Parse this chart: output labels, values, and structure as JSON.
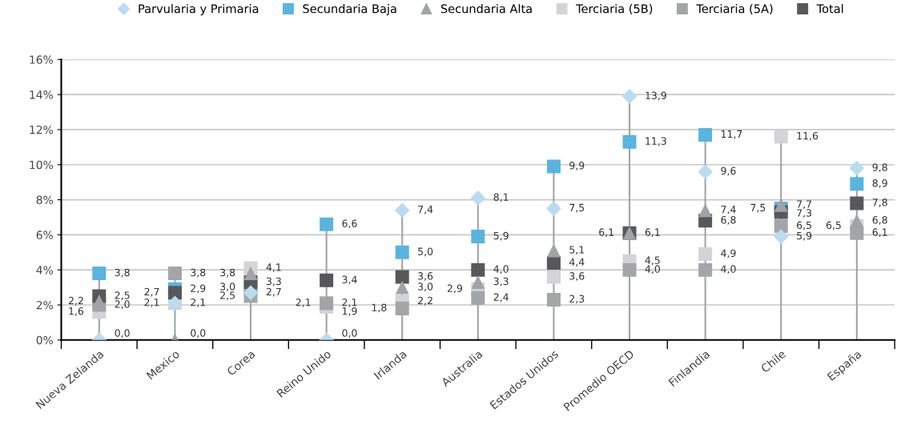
{
  "chart_data": {
    "type": "scatter",
    "categories": [
      "Nueva Zelanda",
      "Mexico",
      "Corea",
      "Reino Unido",
      "Irlanda",
      "Australia",
      "Estados Unidos",
      "Promedio OECD",
      "Finlandia",
      "Chile",
      "España"
    ],
    "series": [
      {
        "name": "Parvularia y Primaria",
        "color": "#b8dcf0",
        "marker": "diamond",
        "values": [
          0.0,
          2.1,
          2.7,
          0.0,
          7.4,
          8.1,
          7.5,
          13.9,
          9.6,
          5.9,
          9.8
        ],
        "value_labels": [
          "0,0",
          "2,1",
          "2,7",
          "0,0",
          "7,4",
          "8,1",
          "7,5",
          "13,9",
          "9,6",
          "5,9",
          "9,8"
        ]
      },
      {
        "name": "Secundaria Baja",
        "color": "#5ab4e0",
        "marker": "square",
        "values": [
          3.8,
          2.9,
          3.0,
          6.6,
          5.0,
          5.9,
          9.9,
          11.3,
          11.7,
          7.5,
          8.9
        ],
        "value_labels": [
          "3,8",
          "2,9",
          "3,0",
          "6,6",
          "5,0",
          "5,9",
          "9,9",
          "11,3",
          "11,7",
          "7,5",
          "8,9"
        ]
      },
      {
        "name": "Secundaria Alta",
        "color": "#a0a4a6",
        "marker": "triangle",
        "values": [
          2.2,
          0.0,
          3.8,
          2.1,
          3.0,
          3.3,
          5.1,
          6.1,
          7.4,
          7.7,
          6.8
        ],
        "value_labels": [
          "2,2",
          "0,0",
          "3,8",
          "2,1",
          "3,0",
          "3,3",
          "5,1",
          "6,1",
          "7,4",
          "7,7",
          "6,8"
        ]
      },
      {
        "name": "Terciaria (5B)",
        "color": "#d4d3d5",
        "marker": "square",
        "values": [
          1.6,
          2.1,
          4.1,
          1.9,
          2.2,
          2.9,
          3.6,
          4.5,
          4.9,
          11.6,
          6.5
        ],
        "value_labels": [
          "1,6",
          "2,1",
          "4,1",
          "1,9",
          "2,2",
          "2,9",
          "3,6",
          "4,5",
          "4,9",
          "11,6",
          "6,5"
        ]
      },
      {
        "name": "Terciaria (5A)",
        "color": "#a3a6a8",
        "marker": "square",
        "values": [
          2.0,
          3.8,
          2.5,
          2.1,
          1.8,
          2.4,
          2.3,
          4.0,
          4.0,
          6.5,
          6.1
        ],
        "value_labels": [
          "2,0",
          "3,8",
          "2,5",
          "2,1",
          "1,8",
          "2,4",
          "2,3",
          "4,0",
          "4,0",
          "6,5",
          "6,1"
        ]
      },
      {
        "name": "Total",
        "color": "#58585a",
        "marker": "square",
        "values": [
          2.5,
          2.7,
          3.3,
          3.4,
          3.6,
          4.0,
          4.4,
          6.1,
          6.8,
          7.3,
          7.8
        ],
        "value_labels": [
          "2,5",
          "2,7",
          "3,3",
          "3,4",
          "3,6",
          "4,0",
          "4,4",
          "6,1",
          "6,8",
          "7,3",
          "7,8"
        ]
      }
    ],
    "ylim": [
      0,
      16
    ],
    "yticks": [
      {
        "value": 0,
        "label": "0%"
      },
      {
        "value": 2,
        "label": "2%"
      },
      {
        "value": 4,
        "label": "4%"
      },
      {
        "value": 6,
        "label": "6%"
      },
      {
        "value": 8,
        "label": "8%"
      },
      {
        "value": 10,
        "label": "10%"
      },
      {
        "value": 12,
        "label": "12%"
      },
      {
        "value": 14,
        "label": "14%"
      },
      {
        "value": 16,
        "label": "16%"
      }
    ],
    "grid": "y",
    "legend": "top"
  }
}
